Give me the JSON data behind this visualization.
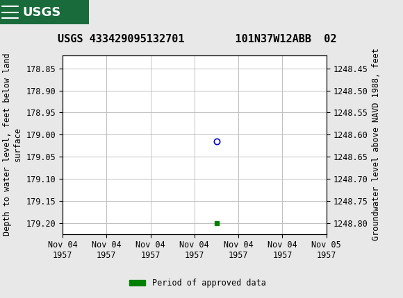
{
  "title": "USGS 433429095132701        101N37W12ABB  02",
  "ylabel_left": "Depth to water level, feet below land\nsurface",
  "ylabel_right": "Groundwater level above NAVD 1988, feet",
  "ylim_left": [
    178.82,
    179.225
  ],
  "ylim_right": [
    1248.42,
    1248.825
  ],
  "yticks_left": [
    178.85,
    178.9,
    178.95,
    179.0,
    179.05,
    179.1,
    179.15,
    179.2
  ],
  "yticks_right": [
    1248.45,
    1248.5,
    1248.55,
    1248.6,
    1248.65,
    1248.7,
    1248.75,
    1248.8
  ],
  "ytick_labels_left": [
    "178.85",
    "178.90",
    "178.95",
    "179.00",
    "179.05",
    "179.10",
    "179.15",
    "179.20"
  ],
  "ytick_labels_right": [
    "1248.45",
    "1248.50",
    "1248.55",
    "1248.60",
    "1248.65",
    "1248.70",
    "1248.75",
    "1248.80"
  ],
  "xtick_labels": [
    "Nov 04\n1957",
    "Nov 04\n1957",
    "Nov 04\n1957",
    "Nov 04\n1957",
    "Nov 04\n1957",
    "Nov 04\n1957",
    "Nov 05\n1957"
  ],
  "data_point_x": 3.5,
  "data_point_y": 179.015,
  "data_point_color": "#0000cd",
  "data_point_marker": "o",
  "green_square_x": 3.5,
  "green_square_y": 179.2,
  "green_square_color": "#008000",
  "header_color": "#1a6b3c",
  "background_color": "#e8e8e8",
  "plot_bg_color": "#ffffff",
  "grid_color": "#c0c0c0",
  "legend_label": "Period of approved data",
  "legend_color": "#008000",
  "font_family": "monospace",
  "title_fontsize": 11,
  "tick_fontsize": 8.5,
  "ylabel_fontsize": 8.5,
  "xlim": [
    0,
    6
  ]
}
